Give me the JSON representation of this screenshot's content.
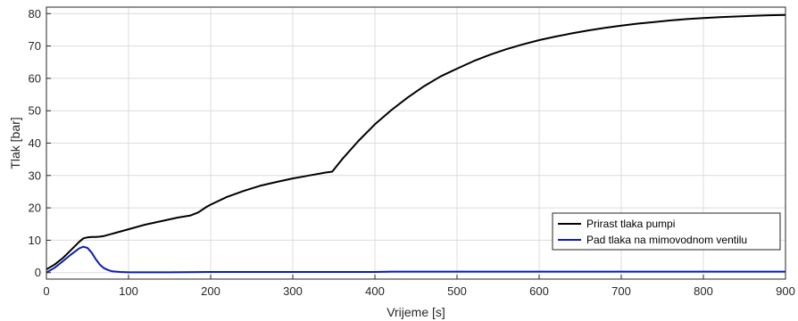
{
  "chart_data": {
    "type": "line",
    "xlabel": "Vrijeme [s]",
    "ylabel": "Tlak [bar]",
    "xlim": [
      0,
      900
    ],
    "ylim": [
      -2,
      82
    ],
    "xticks": [
      0,
      100,
      200,
      300,
      400,
      500,
      600,
      700,
      800,
      900
    ],
    "yticks": [
      0,
      10,
      20,
      30,
      40,
      50,
      60,
      70,
      80
    ],
    "grid": true,
    "legend_position": "lower-right",
    "series": [
      {
        "name": "Prirast tlaka pumpi",
        "color": "#000000",
        "x": [
          0,
          10,
          20,
          30,
          40,
          45,
          50,
          55,
          60,
          65,
          70,
          80,
          100,
          120,
          140,
          160,
          175,
          185,
          195,
          200,
          220,
          240,
          260,
          280,
          300,
          320,
          340,
          348,
          350,
          360,
          380,
          400,
          420,
          440,
          460,
          480,
          500,
          520,
          540,
          560,
          580,
          600,
          620,
          640,
          660,
          680,
          700,
          720,
          740,
          760,
          780,
          800,
          820,
          840,
          860,
          880,
          900
        ],
        "y": [
          1.0,
          2.5,
          4.5,
          7.0,
          9.5,
          10.6,
          10.9,
          11.0,
          11.0,
          11.1,
          11.3,
          12.0,
          13.4,
          14.8,
          15.9,
          17.0,
          17.6,
          18.6,
          20.3,
          21.0,
          23.4,
          25.2,
          26.8,
          28.0,
          29.1,
          30.0,
          30.9,
          31.2,
          31.8,
          35.0,
          40.7,
          45.8,
          50.2,
          54.1,
          57.6,
          60.6,
          63.0,
          65.3,
          67.3,
          69.0,
          70.5,
          71.8,
          72.9,
          73.9,
          74.8,
          75.6,
          76.3,
          76.9,
          77.4,
          77.9,
          78.3,
          78.6,
          78.9,
          79.1,
          79.3,
          79.5,
          79.6
        ]
      },
      {
        "name": "Pad tlaka na mimovodnom ventilu",
        "color": "#0a1cb4",
        "x": [
          0,
          10,
          20,
          30,
          40,
          45,
          50,
          55,
          60,
          65,
          70,
          75,
          80,
          90,
          100,
          150,
          200,
          300,
          400,
          420,
          500,
          600,
          700,
          800,
          900
        ],
        "y": [
          0.0,
          1.5,
          3.5,
          5.6,
          7.5,
          8.0,
          7.6,
          6.2,
          4.2,
          2.5,
          1.4,
          0.8,
          0.4,
          0.2,
          0.1,
          0.1,
          0.2,
          0.2,
          0.2,
          0.3,
          0.3,
          0.3,
          0.3,
          0.3,
          0.3
        ]
      }
    ]
  }
}
